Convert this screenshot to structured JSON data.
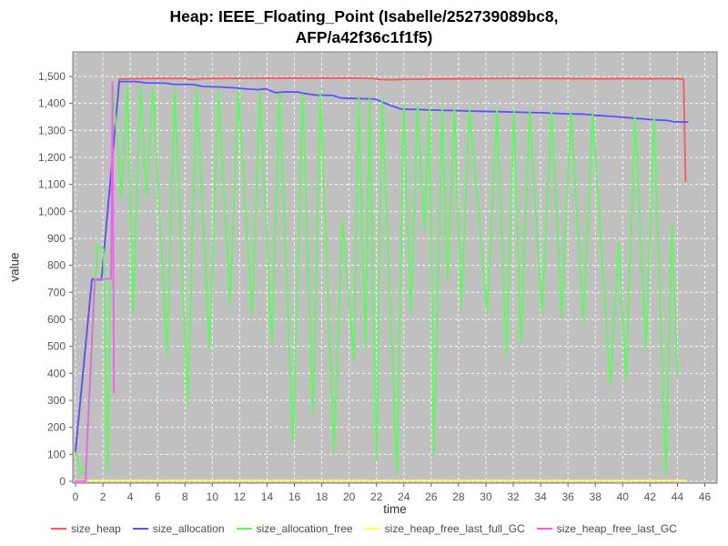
{
  "chart_data": {
    "type": "line",
    "title": "Heap: IEEE_Floating_Point (Isabelle/252739089bc8, AFP/a42f36c1f1f5)",
    "xlabel": "time",
    "ylabel": "value",
    "xlim": [
      -0.2,
      46.9
    ],
    "ylim": [
      -7,
      1591
    ],
    "grid": true,
    "legend_position": "bottom",
    "plot_bg": "#c0c0c0",
    "grid_color": "#ffffff",
    "border_color": "#7f7f7f",
    "tick_color": "#666666",
    "tick_label_color": "#555555",
    "x_tick_values": [
      0,
      2,
      4,
      6,
      8,
      10,
      12,
      14,
      16,
      18,
      20,
      22,
      24,
      26,
      28,
      30,
      32,
      34,
      36,
      38,
      40,
      42,
      44,
      46
    ],
    "x_tick_labels": [
      "0",
      "2",
      "4",
      "6",
      "8",
      "10",
      "12",
      "14",
      "16",
      "18",
      "20",
      "22",
      "24",
      "26",
      "28",
      "30",
      "32",
      "34",
      "36",
      "38",
      "40",
      "42",
      "44",
      "46"
    ],
    "y_tick_values": [
      0,
      100,
      200,
      300,
      400,
      500,
      600,
      700,
      800,
      900,
      1000,
      1100,
      1200,
      1300,
      1400,
      1500
    ],
    "y_tick_labels": [
      "0",
      "100",
      "200",
      "300",
      "400",
      "500",
      "600",
      "700",
      "800",
      "900",
      "1,000",
      "1,100",
      "1,200",
      "1,300",
      "1,400",
      "1,500"
    ],
    "series": [
      {
        "name": "size_heap",
        "color": "#ff5555",
        "points": [
          [
            0,
            110
          ],
          [
            0.5,
            370
          ],
          [
            1.2,
            750
          ],
          [
            1.9,
            750
          ],
          [
            3.2,
            1490
          ],
          [
            5,
            1492
          ],
          [
            8,
            1493
          ],
          [
            8.5,
            1489
          ],
          [
            9.2,
            1492
          ],
          [
            12,
            1493
          ],
          [
            16,
            1494
          ],
          [
            20,
            1494
          ],
          [
            21.6,
            1493
          ],
          [
            22.3,
            1489
          ],
          [
            23.2,
            1488
          ],
          [
            24.5,
            1490
          ],
          [
            27,
            1491
          ],
          [
            30,
            1492
          ],
          [
            33,
            1493
          ],
          [
            36,
            1492
          ],
          [
            38.5,
            1491
          ],
          [
            40,
            1492
          ],
          [
            42,
            1491
          ],
          [
            43,
            1492
          ],
          [
            44.3,
            1491
          ],
          [
            44.45,
            1490
          ],
          [
            44.6,
            1110
          ]
        ]
      },
      {
        "name": "size_allocation",
        "color": "#5555ff",
        "points": [
          [
            0,
            115
          ],
          [
            1.2,
            747
          ],
          [
            1.9,
            747
          ],
          [
            3.2,
            1481
          ],
          [
            4.4,
            1481
          ],
          [
            5.2,
            1476
          ],
          [
            6.6,
            1475
          ],
          [
            7.1,
            1471
          ],
          [
            8.6,
            1470
          ],
          [
            9.3,
            1463
          ],
          [
            10.6,
            1461
          ],
          [
            11.6,
            1458
          ],
          [
            12.6,
            1453
          ],
          [
            13.4,
            1451
          ],
          [
            13.9,
            1454
          ],
          [
            14.6,
            1440
          ],
          [
            15.4,
            1443
          ],
          [
            16.3,
            1442
          ],
          [
            16.7,
            1437
          ],
          [
            17.6,
            1431
          ],
          [
            18.8,
            1430
          ],
          [
            19.4,
            1420
          ],
          [
            20.6,
            1418
          ],
          [
            21.9,
            1416
          ],
          [
            22.5,
            1404
          ],
          [
            23.1,
            1391
          ],
          [
            23.8,
            1379
          ],
          [
            25.2,
            1377
          ],
          [
            26.6,
            1375
          ],
          [
            28.2,
            1373
          ],
          [
            29.6,
            1371
          ],
          [
            31.2,
            1369
          ],
          [
            32.6,
            1367
          ],
          [
            34.2,
            1365
          ],
          [
            35.6,
            1362
          ],
          [
            37.2,
            1360
          ],
          [
            38,
            1356
          ],
          [
            39.2,
            1352
          ],
          [
            40.2,
            1348
          ],
          [
            41.2,
            1344
          ],
          [
            42.2,
            1340
          ],
          [
            43.2,
            1337
          ],
          [
            43.7,
            1332
          ],
          [
            44.75,
            1331
          ]
        ]
      },
      {
        "name": "size_allocation_free",
        "color": "#55ff55",
        "points": [
          [
            0,
            105
          ],
          [
            0.45,
            25
          ],
          [
            0.8,
            80
          ],
          [
            1.6,
            875
          ],
          [
            2.05,
            860
          ],
          [
            2.35,
            30
          ],
          [
            2.75,
            1460
          ],
          [
            3.35,
            1050
          ],
          [
            3.8,
            1461
          ],
          [
            4.2,
            620
          ],
          [
            4.75,
            1459
          ],
          [
            5.2,
            1055
          ],
          [
            5.65,
            1457
          ],
          [
            6.7,
            470
          ],
          [
            7.25,
            1452
          ],
          [
            8.2,
            285
          ],
          [
            8.85,
            1449
          ],
          [
            9.8,
            495
          ],
          [
            10.45,
            1447
          ],
          [
            11.3,
            655
          ],
          [
            11.9,
            1444
          ],
          [
            12.9,
            622
          ],
          [
            13.5,
            1440
          ],
          [
            14.35,
            507
          ],
          [
            14.9,
            1437
          ],
          [
            15.9,
            145
          ],
          [
            16.6,
            1434
          ],
          [
            17.35,
            248
          ],
          [
            17.9,
            1431
          ],
          [
            18.9,
            110
          ],
          [
            19.5,
            965
          ],
          [
            20.35,
            448
          ],
          [
            20.7,
            1419
          ],
          [
            21.2,
            488
          ],
          [
            21.5,
            1417
          ],
          [
            22,
            80
          ],
          [
            22.4,
            1412
          ],
          [
            23.5,
            25
          ],
          [
            24,
            1392
          ],
          [
            24.5,
            620
          ],
          [
            25,
            1388
          ],
          [
            25.5,
            930
          ],
          [
            25.9,
            1386
          ],
          [
            26.2,
            95
          ],
          [
            26.8,
            1382
          ],
          [
            27.2,
            740
          ],
          [
            27.7,
            1380
          ],
          [
            28.2,
            640
          ],
          [
            28.8,
            1378
          ],
          [
            30.1,
            624
          ],
          [
            30.8,
            1375
          ],
          [
            31.5,
            469
          ],
          [
            32.05,
            1373
          ],
          [
            32.55,
            514
          ],
          [
            33.2,
            1371
          ],
          [
            34.1,
            624
          ],
          [
            34.8,
            1369
          ],
          [
            35.55,
            610
          ],
          [
            36.2,
            1367
          ],
          [
            37.15,
            593
          ],
          [
            37.8,
            1361
          ],
          [
            39.1,
            359
          ],
          [
            39.7,
            883
          ],
          [
            40.25,
            376
          ],
          [
            40.9,
            1352
          ],
          [
            41.7,
            486
          ],
          [
            42.3,
            1348
          ],
          [
            43.15,
            30
          ],
          [
            43.6,
            950
          ],
          [
            44,
            390
          ]
        ]
      },
      {
        "name": "size_heap_free_last_full_GC",
        "color": "#ffff55",
        "points": [
          [
            0,
            3
          ],
          [
            44.6,
            3
          ]
        ]
      },
      {
        "name": "size_heap_free_last_GC",
        "color": "#ff55ff",
        "points": [
          [
            0,
            1
          ],
          [
            0.75,
            1
          ],
          [
            0.78,
            68
          ],
          [
            1.4,
            750
          ],
          [
            2.6,
            750
          ],
          [
            2.7,
            1478
          ],
          [
            2.8,
            330
          ]
        ]
      }
    ]
  }
}
